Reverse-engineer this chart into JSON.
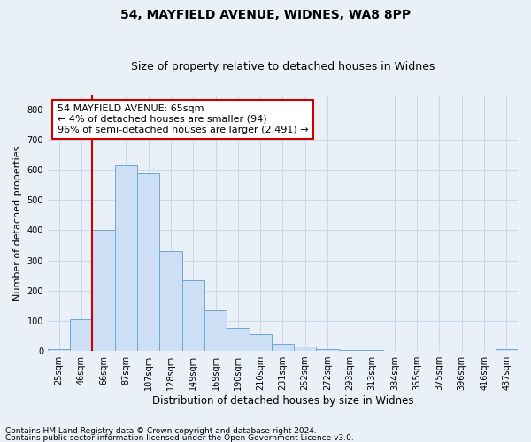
{
  "title1": "54, MAYFIELD AVENUE, WIDNES, WA8 8PP",
  "title2": "Size of property relative to detached houses in Widnes",
  "xlabel": "Distribution of detached houses by size in Widnes",
  "ylabel": "Number of detached properties",
  "footer1": "Contains HM Land Registry data © Crown copyright and database right 2024.",
  "footer2": "Contains public sector information licensed under the Open Government Licence v3.0.",
  "categories": [
    "25sqm",
    "46sqm",
    "66sqm",
    "87sqm",
    "107sqm",
    "128sqm",
    "149sqm",
    "169sqm",
    "190sqm",
    "210sqm",
    "231sqm",
    "252sqm",
    "272sqm",
    "293sqm",
    "313sqm",
    "334sqm",
    "355sqm",
    "375sqm",
    "396sqm",
    "416sqm",
    "437sqm"
  ],
  "values": [
    5,
    105,
    400,
    615,
    590,
    330,
    235,
    135,
    75,
    55,
    25,
    15,
    5,
    2,
    2,
    0,
    0,
    0,
    0,
    0,
    5
  ],
  "bar_color": "#ccdff5",
  "bar_edge_color": "#6aaad4",
  "bar_linewidth": 0.7,
  "grid_color": "#c8d8e8",
  "bg_color": "#eaf0f8",
  "annotation_box_text": "54 MAYFIELD AVENUE: 65sqm\n← 4% of detached houses are smaller (94)\n96% of semi-detached houses are larger (2,491) →",
  "annotation_box_color": "#ffffff",
  "annotation_box_edge": "#cc0000",
  "vline_color": "#cc0000",
  "vline_x_index": 2,
  "ylim": [
    0,
    850
  ],
  "yticks": [
    0,
    100,
    200,
    300,
    400,
    500,
    600,
    700,
    800
  ],
  "title_fontsize": 10,
  "subtitle_fontsize": 9,
  "tick_fontsize": 7,
  "ylabel_fontsize": 8,
  "xlabel_fontsize": 8.5,
  "annotation_fontsize": 8,
  "footer_fontsize": 6.5
}
